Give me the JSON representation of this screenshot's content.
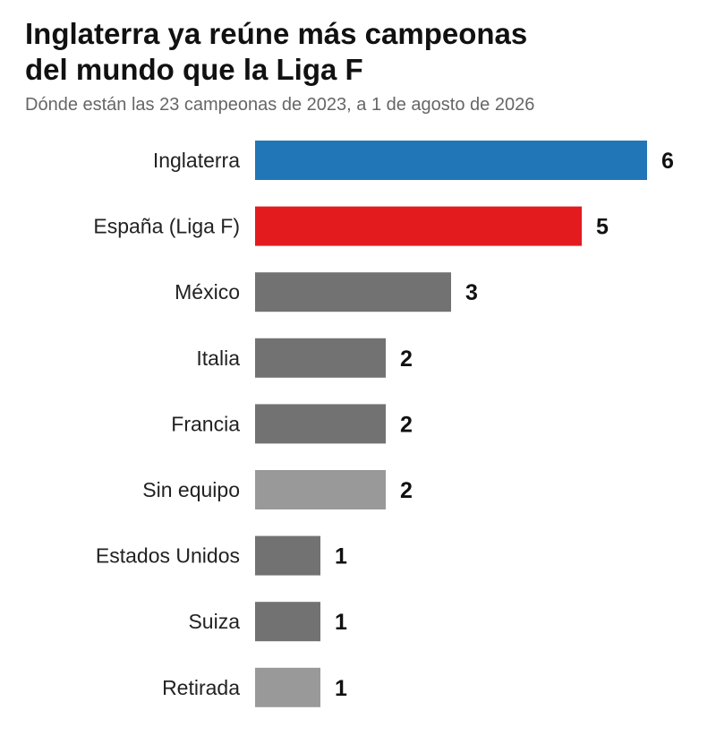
{
  "title_line1": "Inglaterra ya reúne más campeonas",
  "title_line2": "del mundo que la Liga F",
  "subtitle": "Dónde están las 23 campeonas de 2023, a 1 de agosto de 2026",
  "chart_data": {
    "type": "bar",
    "orientation": "horizontal",
    "title": "Inglaterra ya reúne más campeonas del mundo que la Liga F",
    "subtitle": "Dónde están las 23 campeonas de 2023, a 1 de agosto de 2026",
    "categories": [
      "Inglaterra",
      "España (Liga F)",
      "México",
      "Italia",
      "Francia",
      "Sin equipo",
      "Estados Unidos",
      "Suiza",
      "Retirada"
    ],
    "values": [
      6,
      5,
      3,
      2,
      2,
      2,
      1,
      1,
      1
    ],
    "colors": [
      "#2176b8",
      "#e41b1e",
      "#727272",
      "#727272",
      "#727272",
      "#999999",
      "#727272",
      "#727272",
      "#999999"
    ],
    "xlim": [
      0,
      6
    ],
    "grid": false,
    "legend": "none"
  }
}
